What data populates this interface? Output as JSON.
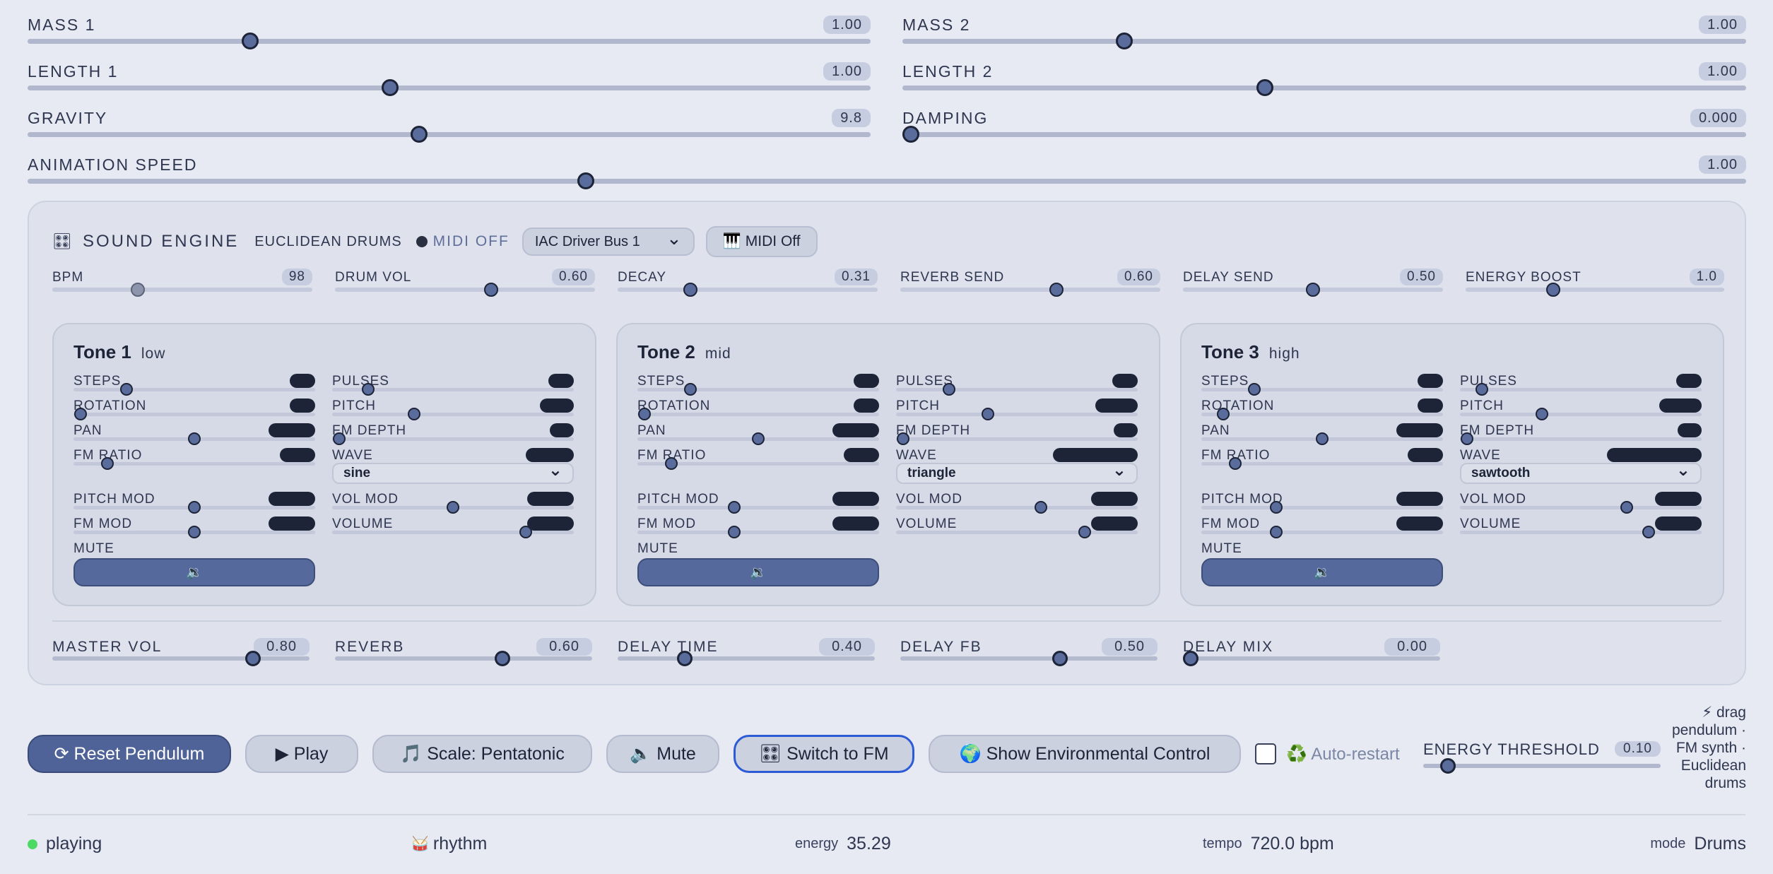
{
  "top_sliders": [
    {
      "label": "MASS 1",
      "value": "1.00",
      "fraction": 0.264
    },
    {
      "label": "MASS 2",
      "value": "1.00",
      "fraction": 0.263
    },
    {
      "label": "LENGTH 1",
      "value": "1.00",
      "fraction": 0.43
    },
    {
      "label": "LENGTH 2",
      "value": "1.00",
      "fraction": 0.43
    },
    {
      "label": "GRAVITY",
      "value": "9.8",
      "fraction": 0.464
    },
    {
      "label": "DAMPING",
      "value": "0.000",
      "fraction": 0.01
    },
    {
      "label": "ANIMATION SPEED",
      "value": "1.00",
      "fraction": 0.325
    }
  ],
  "engine": {
    "icon": "🎛",
    "title": "SOUND ENGINE",
    "subtitle": "EUCLIDEAN DRUMS",
    "midi_status": "MIDI OFF",
    "midi_device": "IAC Driver Bus 1",
    "midi_button": "🎹 MIDI Off",
    "sliders": [
      {
        "label": "BPM",
        "value": "98",
        "fraction": 0.33,
        "disabled": true
      },
      {
        "label": "DRUM VOL",
        "value": "0.60",
        "fraction": 0.6
      },
      {
        "label": "DECAY",
        "value": "0.31",
        "fraction": 0.28
      },
      {
        "label": "REVERB SEND",
        "value": "0.60",
        "fraction": 0.6
      },
      {
        "label": "DELAY SEND",
        "value": "0.50",
        "fraction": 0.5
      },
      {
        "label": "ENERGY BOOST",
        "value": "1.0",
        "fraction": 0.34
      }
    ],
    "tones": [
      {
        "name": "Tone 1",
        "range": "low",
        "wave": "sine",
        "left": [
          {
            "label": "STEPS",
            "fraction": 0.22,
            "pill": 36
          },
          {
            "label": "ROTATION",
            "fraction": 0.03,
            "pill": 36
          },
          {
            "label": "PAN",
            "fraction": 0.5,
            "pill": 66
          },
          {
            "label": "FM RATIO",
            "fraction": 0.14,
            "pill": 50
          }
        ],
        "right": [
          {
            "label": "PULSES",
            "fraction": 0.15,
            "pill": 36
          },
          {
            "label": "PITCH",
            "fraction": 0.34,
            "pill": 48
          },
          {
            "label": "FM DEPTH",
            "fraction": 0.03,
            "pill": 34
          },
          {
            "label": "WAVE",
            "fraction": null,
            "pill": 68
          }
        ],
        "mods_left": [
          {
            "label": "PITCH MOD",
            "fraction": 0.5,
            "pill": 66
          },
          {
            "label": "FM MOD",
            "fraction": 0.5,
            "pill": 66
          }
        ],
        "mods_right": [
          {
            "label": "VOL MOD",
            "fraction": 0.5,
            "pill": 66
          },
          {
            "label": "VOLUME",
            "fraction": 0.8,
            "pill": 66
          }
        ],
        "mute_label": "MUTE",
        "mute_icon": "🔉"
      },
      {
        "name": "Tone 2",
        "range": "mid",
        "wave": "triangle",
        "left": [
          {
            "label": "STEPS",
            "fraction": 0.22,
            "pill": 36
          },
          {
            "label": "ROTATION",
            "fraction": 0.03,
            "pill": 36
          },
          {
            "label": "PAN",
            "fraction": 0.5,
            "pill": 66
          },
          {
            "label": "FM RATIO",
            "fraction": 0.14,
            "pill": 50
          }
        ],
        "right": [
          {
            "label": "PULSES",
            "fraction": 0.22,
            "pill": 36
          },
          {
            "label": "PITCH",
            "fraction": 0.38,
            "pill": 60
          },
          {
            "label": "FM DEPTH",
            "fraction": 0.03,
            "pill": 34
          },
          {
            "label": "WAVE",
            "fraction": null,
            "pill": 120
          }
        ],
        "mods_left": [
          {
            "label": "PITCH MOD",
            "fraction": 0.4,
            "pill": 66
          },
          {
            "label": "FM MOD",
            "fraction": 0.4,
            "pill": 66
          }
        ],
        "mods_right": [
          {
            "label": "VOL MOD",
            "fraction": 0.6,
            "pill": 66
          },
          {
            "label": "VOLUME",
            "fraction": 0.78,
            "pill": 66
          }
        ],
        "mute_label": "MUTE",
        "mute_icon": "🔉"
      },
      {
        "name": "Tone 3",
        "range": "high",
        "wave": "sawtooth",
        "left": [
          {
            "label": "STEPS",
            "fraction": 0.22,
            "pill": 36
          },
          {
            "label": "ROTATION",
            "fraction": 0.09,
            "pill": 36
          },
          {
            "label": "PAN",
            "fraction": 0.5,
            "pill": 66
          },
          {
            "label": "FM RATIO",
            "fraction": 0.14,
            "pill": 50
          }
        ],
        "right": [
          {
            "label": "PULSES",
            "fraction": 0.09,
            "pill": 36
          },
          {
            "label": "PITCH",
            "fraction": 0.34,
            "pill": 60
          },
          {
            "label": "FM DEPTH",
            "fraction": 0.03,
            "pill": 34
          },
          {
            "label": "WAVE",
            "fraction": null,
            "pill": 134
          }
        ],
        "mods_left": [
          {
            "label": "PITCH MOD",
            "fraction": 0.31,
            "pill": 66
          },
          {
            "label": "FM MOD",
            "fraction": 0.31,
            "pill": 66
          }
        ],
        "mods_right": [
          {
            "label": "VOL MOD",
            "fraction": 0.69,
            "pill": 66
          },
          {
            "label": "VOLUME",
            "fraction": 0.78,
            "pill": 66
          }
        ],
        "mute_label": "MUTE",
        "mute_icon": "🔉"
      }
    ],
    "master": [
      {
        "label": "MASTER VOL",
        "value": "0.80",
        "fraction": 0.78
      },
      {
        "label": "REVERB",
        "value": "0.60",
        "fraction": 0.65
      },
      {
        "label": "DELAY TIME",
        "value": "0.40",
        "fraction": 0.26
      },
      {
        "label": "DELAY FB",
        "value": "0.50",
        "fraction": 0.62
      },
      {
        "label": "DELAY MIX",
        "value": "0.00",
        "fraction": 0.03
      }
    ]
  },
  "toolbar": {
    "reset": "⟳ Reset Pendulum",
    "play": "▶ Play",
    "scale": "🎵 Scale: Pentatonic",
    "mute": "🔈 Mute",
    "switch": "🎛 Switch to FM",
    "env": "🌍 Show Environmental Control",
    "auto_restart": "♻️ Auto-restart",
    "threshold_label": "ENERGY THRESHOLD",
    "threshold_value": "0.10",
    "threshold_fraction": 0.1,
    "hint": "⚡ drag pendulum · FM synth · Euclidean drums"
  },
  "status": {
    "state": "playing",
    "rhythm_icon": "🥁",
    "rhythm": "rhythm",
    "energy_label": "energy",
    "energy": "35.29",
    "tempo_label": "tempo",
    "tempo": "720.0 bpm",
    "mode_label": "mode",
    "mode": "Drums"
  },
  "colors": {
    "accent": "#4f6398",
    "focus": "#2d5bd6",
    "status_dot": "#4cd964"
  }
}
